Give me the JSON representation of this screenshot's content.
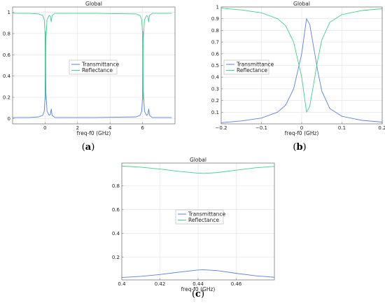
{
  "colors": {
    "transmittance": "#5b7fe0",
    "reflectance": "#3fd28a",
    "grid": "#e2e2e2",
    "frame": "#7a7a7a"
  },
  "chart_data": [
    {
      "type": "line",
      "title": "Global",
      "xlabel": "freq-f0 (GHz)",
      "ylabel": "",
      "caption": {
        "open": "(",
        "label": "a",
        "close": ")"
      },
      "xlim": [
        -2,
        8
      ],
      "ylim": [
        -0.05,
        1.05
      ],
      "xticks": [
        {
          "v": 0,
          "t": "0"
        },
        {
          "v": 2,
          "t": "2"
        },
        {
          "v": 4,
          "t": "4"
        },
        {
          "v": 6,
          "t": "6"
        }
      ],
      "yticks": [
        {
          "v": 0,
          "t": "0"
        },
        {
          "v": 0.2,
          "t": "0.2"
        },
        {
          "v": 0.4,
          "t": "0.4"
        },
        {
          "v": 0.6,
          "t": "0.6"
        },
        {
          "v": 0.8,
          "t": "0.8"
        },
        {
          "v": 1,
          "t": "1"
        }
      ],
      "legend_position": "center",
      "series": [
        {
          "name": "Transmittance",
          "points": [
            [
              -2,
              0.01
            ],
            [
              -1,
              0.01
            ],
            [
              -0.4,
              0.015
            ],
            [
              -0.15,
              0.03
            ],
            [
              -0.05,
              0.07
            ],
            [
              0,
              0.2
            ],
            [
              0.02,
              0.82
            ],
            [
              0.05,
              0.25
            ],
            [
              0.12,
              0.07
            ],
            [
              0.25,
              0.03
            ],
            [
              0.33,
              0.04
            ],
            [
              0.38,
              0.09
            ],
            [
              0.43,
              0.03
            ],
            [
              0.6,
              0.01
            ],
            [
              3,
              0.01
            ],
            [
              5.6,
              0.015
            ],
            [
              5.85,
              0.03
            ],
            [
              5.95,
              0.07
            ],
            [
              6.0,
              0.2
            ],
            [
              6.02,
              0.82
            ],
            [
              6.05,
              0.25
            ],
            [
              6.12,
              0.07
            ],
            [
              6.25,
              0.03
            ],
            [
              6.33,
              0.04
            ],
            [
              6.38,
              0.09
            ],
            [
              6.43,
              0.03
            ],
            [
              6.6,
              0.01
            ],
            [
              7.8,
              0.01
            ]
          ]
        },
        {
          "name": "Reflectance",
          "points": [
            [
              -2,
              0.99
            ],
            [
              -1,
              0.99
            ],
            [
              -0.4,
              0.985
            ],
            [
              -0.15,
              0.97
            ],
            [
              -0.05,
              0.93
            ],
            [
              0,
              0.8
            ],
            [
              0.02,
              0.18
            ],
            [
              0.05,
              0.75
            ],
            [
              0.12,
              0.93
            ],
            [
              0.25,
              0.97
            ],
            [
              0.33,
              0.96
            ],
            [
              0.38,
              0.91
            ],
            [
              0.43,
              0.97
            ],
            [
              0.6,
              0.99
            ],
            [
              3,
              0.99
            ],
            [
              5.6,
              0.985
            ],
            [
              5.85,
              0.97
            ],
            [
              5.95,
              0.93
            ],
            [
              6.0,
              0.8
            ],
            [
              6.02,
              0.18
            ],
            [
              6.05,
              0.75
            ],
            [
              6.12,
              0.93
            ],
            [
              6.25,
              0.97
            ],
            [
              6.33,
              0.96
            ],
            [
              6.38,
              0.91
            ],
            [
              6.43,
              0.97
            ],
            [
              6.6,
              0.99
            ],
            [
              7.8,
              0.99
            ]
          ]
        }
      ]
    },
    {
      "type": "line",
      "title": "Global",
      "xlabel": "freq-f0 (GHz)",
      "ylabel": "",
      "caption": {
        "open": "(",
        "label": "b",
        "close": ")"
      },
      "xlim": [
        -0.2,
        0.2
      ],
      "ylim": [
        0,
        1
      ],
      "xticks": [
        {
          "v": -0.2,
          "t": "−0.2"
        },
        {
          "v": -0.1,
          "t": "−0.1"
        },
        {
          "v": 0,
          "t": "0"
        },
        {
          "v": 0.1,
          "t": "0.1"
        },
        {
          "v": 0.2,
          "t": "0.2"
        }
      ],
      "yticks": [
        {
          "v": 0.1,
          "t": "0.1"
        },
        {
          "v": 0.2,
          "t": "0.2"
        },
        {
          "v": 0.3,
          "t": "0.3"
        },
        {
          "v": 0.4,
          "t": "0.4"
        },
        {
          "v": 0.5,
          "t": "0.5"
        },
        {
          "v": 0.6,
          "t": "0.6"
        },
        {
          "v": 0.7,
          "t": "0.7"
        },
        {
          "v": 0.8,
          "t": "0.8"
        },
        {
          "v": 0.9,
          "t": "0.9"
        },
        {
          "v": 1,
          "t": "1"
        }
      ],
      "legend_position": "center-left",
      "series": [
        {
          "name": "Transmittance",
          "points": [
            [
              -0.2,
              0.01
            ],
            [
              -0.15,
              0.025
            ],
            [
              -0.1,
              0.05
            ],
            [
              -0.06,
              0.1
            ],
            [
              -0.04,
              0.16
            ],
            [
              -0.02,
              0.3
            ],
            [
              0,
              0.6
            ],
            [
              0.01,
              0.85
            ],
            [
              0.012,
              0.9
            ],
            [
              0.02,
              0.85
            ],
            [
              0.03,
              0.65
            ],
            [
              0.04,
              0.45
            ],
            [
              0.05,
              0.28
            ],
            [
              0.07,
              0.13
            ],
            [
              0.1,
              0.065
            ],
            [
              0.15,
              0.03
            ],
            [
              0.2,
              0.015
            ]
          ]
        },
        {
          "name": "Reflectance",
          "points": [
            [
              -0.2,
              0.99
            ],
            [
              -0.15,
              0.975
            ],
            [
              -0.1,
              0.95
            ],
            [
              -0.06,
              0.9
            ],
            [
              -0.04,
              0.84
            ],
            [
              -0.02,
              0.7
            ],
            [
              0,
              0.4
            ],
            [
              0.01,
              0.15
            ],
            [
              0.012,
              0.1
            ],
            [
              0.02,
              0.15
            ],
            [
              0.03,
              0.35
            ],
            [
              0.04,
              0.55
            ],
            [
              0.05,
              0.72
            ],
            [
              0.07,
              0.87
            ],
            [
              0.1,
              0.935
            ],
            [
              0.15,
              0.97
            ],
            [
              0.2,
              0.985
            ]
          ]
        }
      ]
    },
    {
      "type": "line",
      "title": "Global",
      "xlabel": "freq-f0 (GHz)",
      "ylabel": "",
      "caption": {
        "open": "(",
        "label": "c",
        "close": ")"
      },
      "xlim": [
        0.4,
        0.48
      ],
      "ylim": [
        0.01,
        0.99
      ],
      "xticks": [
        {
          "v": 0.4,
          "t": "0.4"
        },
        {
          "v": 0.42,
          "t": "0.42"
        },
        {
          "v": 0.44,
          "t": "0.44"
        },
        {
          "v": 0.46,
          "t": "0.46"
        }
      ],
      "yticks": [
        {
          "v": 0.2,
          "t": "0.2"
        },
        {
          "v": 0.4,
          "t": "0.4"
        },
        {
          "v": 0.6,
          "t": "0.6"
        },
        {
          "v": 0.8,
          "t": "0.8"
        }
      ],
      "legend_position": "center",
      "series": [
        {
          "name": "Transmittance",
          "points": [
            [
              0.4,
              0.03
            ],
            [
              0.41,
              0.04
            ],
            [
              0.42,
              0.055
            ],
            [
              0.43,
              0.075
            ],
            [
              0.44,
              0.093
            ],
            [
              0.443,
              0.095
            ],
            [
              0.45,
              0.088
            ],
            [
              0.46,
              0.065
            ],
            [
              0.47,
              0.045
            ],
            [
              0.48,
              0.032
            ]
          ]
        },
        {
          "name": "Reflectance",
          "points": [
            [
              0.4,
              0.965
            ],
            [
              0.41,
              0.955
            ],
            [
              0.42,
              0.94
            ],
            [
              0.43,
              0.92
            ],
            [
              0.44,
              0.905
            ],
            [
              0.443,
              0.903
            ],
            [
              0.45,
              0.91
            ],
            [
              0.46,
              0.93
            ],
            [
              0.47,
              0.95
            ],
            [
              0.48,
              0.962
            ]
          ]
        }
      ]
    }
  ]
}
